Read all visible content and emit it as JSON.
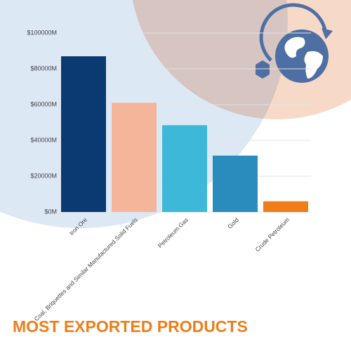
{
  "chart_data": {
    "type": "bar",
    "title": "MOST EXPORTED PRODUCTS",
    "categories": [
      "Iron Ore",
      "Coal, Briquettes and Similar Manufactured Solid Fuels",
      "Petroleum Gas",
      "Gold",
      "Crude Petroleum"
    ],
    "values": [
      87000,
      61000,
      48500,
      31500,
      6000
    ],
    "colors": [
      "#0b3a73",
      "#f4b59a",
      "#3db8d8",
      "#2a8bbd",
      "#ef7d1a"
    ],
    "ylim": [
      0,
      100000
    ],
    "yticks": [
      {
        "value": 0,
        "label": "$0M"
      },
      {
        "value": 20000,
        "label": "$20000M"
      },
      {
        "value": 40000,
        "label": "$40000M"
      },
      {
        "value": 60000,
        "label": "$60000M"
      },
      {
        "value": 80000,
        "label": "$80000M"
      },
      {
        "value": 100000,
        "label": "$100000M"
      }
    ],
    "grid": true
  }
}
